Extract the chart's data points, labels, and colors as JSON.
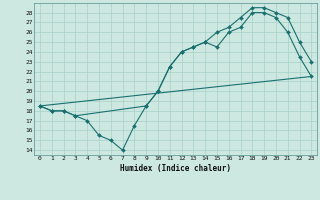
{
  "title": "",
  "xlabel": "Humidex (Indice chaleur)",
  "bg_color": "#cce8e0",
  "grid_color": "#a8d0c8",
  "line_color": "#1a7070",
  "xlim": [
    -0.5,
    23.5
  ],
  "ylim": [
    13.5,
    29
  ],
  "xticks": [
    0,
    1,
    2,
    3,
    4,
    5,
    6,
    7,
    8,
    9,
    10,
    11,
    12,
    13,
    14,
    15,
    16,
    17,
    18,
    19,
    20,
    21,
    22,
    23
  ],
  "yticks": [
    14,
    15,
    16,
    17,
    18,
    19,
    20,
    21,
    22,
    23,
    24,
    25,
    26,
    27,
    28
  ],
  "line1_x": [
    0,
    1,
    2,
    3,
    4,
    5,
    6,
    7,
    8,
    9,
    10,
    11,
    12,
    13,
    14,
    15,
    16,
    17,
    18,
    19,
    20,
    21,
    22,
    23
  ],
  "line1_y": [
    18.5,
    18,
    18,
    17.5,
    17,
    15.5,
    15,
    14,
    16.5,
    18.5,
    20,
    22.5,
    24,
    24.5,
    25,
    24.5,
    26,
    26.5,
    28,
    28,
    27.5,
    26,
    23.5,
    21.5
  ],
  "line2_x": [
    0,
    1,
    2,
    3,
    9,
    10,
    11,
    12,
    13,
    14,
    15,
    16,
    17,
    18,
    19,
    20,
    21,
    22,
    23
  ],
  "line2_y": [
    18.5,
    18,
    18,
    17.5,
    18.5,
    20,
    22.5,
    24,
    24.5,
    25,
    26,
    26.5,
    27.5,
    28.5,
    28.5,
    28,
    27.5,
    25,
    23
  ],
  "line3_x": [
    0,
    23
  ],
  "line3_y": [
    18.5,
    21.5
  ]
}
